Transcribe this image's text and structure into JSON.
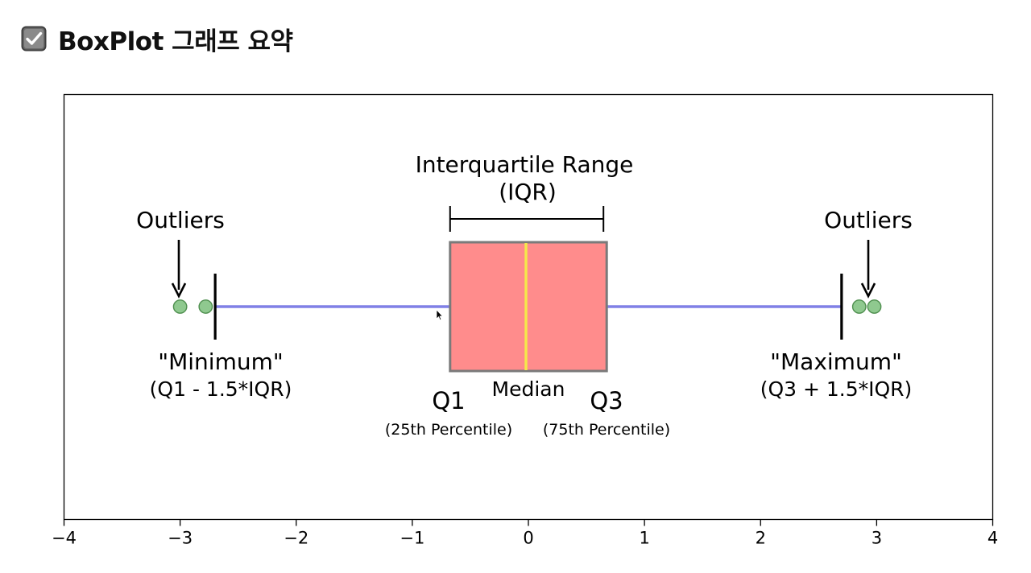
{
  "header": {
    "title": "BoxPlot 그래프 요약",
    "icon": "checkbox-checked-icon"
  },
  "chart_data": {
    "type": "box",
    "xlim": [
      -4,
      4
    ],
    "x_ticks": [
      -4,
      -3,
      -2,
      -1,
      0,
      1,
      2,
      3,
      4
    ],
    "x_tick_labels": [
      "−4",
      "−3",
      "−2",
      "−1",
      "0",
      "1",
      "2",
      "3",
      "4"
    ],
    "grid": false,
    "box": {
      "q1": -0.6745,
      "median": 0,
      "q3": 0.6745,
      "whisker_low": -2.698,
      "whisker_high": 2.698,
      "outliers": [
        -3.0,
        -2.78,
        2.85,
        2.98
      ]
    },
    "annotations": {
      "iqr_line1": "Interquartile Range",
      "iqr_line2": "(IQR)",
      "outliers_left": "Outliers",
      "outliers_right": "Outliers",
      "minimum": "\"Minimum\"",
      "minimum_formula": "(Q1 - 1.5*IQR)",
      "maximum": "\"Maximum\"",
      "maximum_formula": "(Q3 + 1.5*IQR)",
      "median": "Median",
      "q1": "Q1",
      "q1_sub": "(25th Percentile)",
      "q3": "Q3",
      "q3_sub": "(75th Percentile)"
    },
    "colors": {
      "box_fill": "#ff8c8c",
      "box_edge": "#7a7a7a",
      "median": "#f5e94a",
      "whisker": "#8080e6",
      "outlier_fill": "#8fc98f",
      "outlier_edge": "#4f8f4f"
    }
  }
}
